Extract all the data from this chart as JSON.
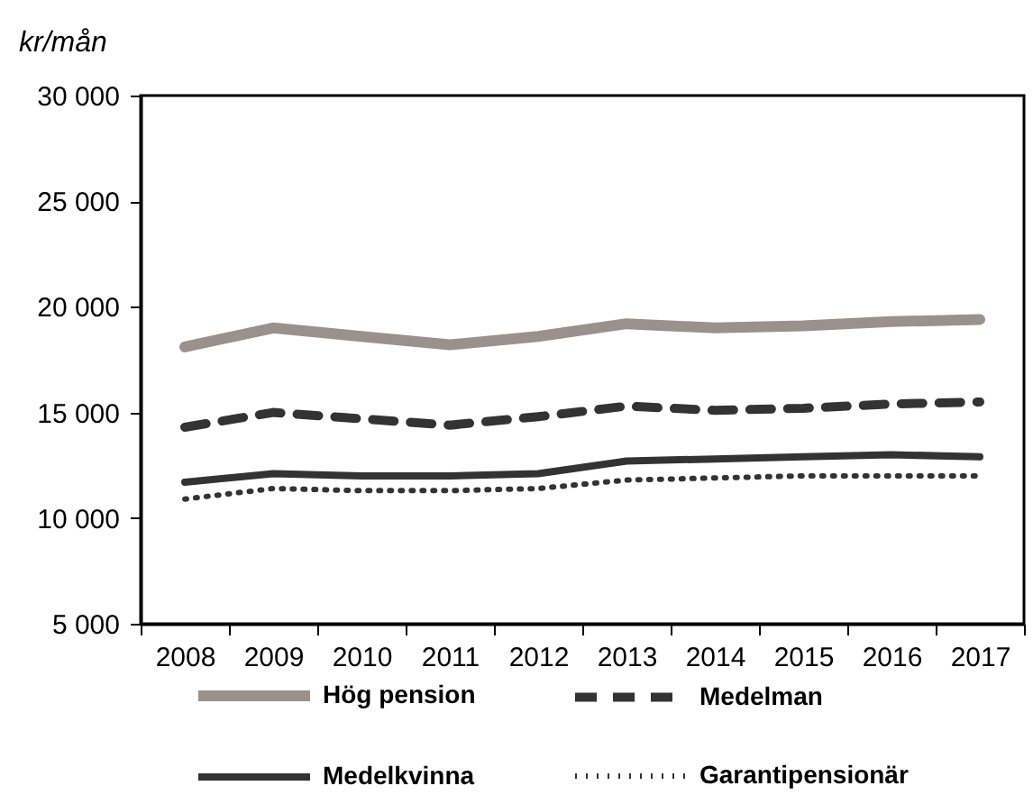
{
  "chart_data": {
    "type": "line",
    "ylabel": "kr/mån",
    "categories": [
      "2008",
      "2009",
      "2010",
      "2011",
      "2012",
      "2013",
      "2014",
      "2015",
      "2016",
      "2017"
    ],
    "series": [
      {
        "name": "Hög pension",
        "color": "#9a918d",
        "line_style": "solid",
        "values": [
          18100,
          19000,
          18600,
          18200,
          18600,
          19200,
          19000,
          19100,
          19300,
          19400
        ]
      },
      {
        "name": "Medelman",
        "color": "#333333",
        "line_style": "dashed",
        "values": [
          14300,
          15000,
          14700,
          14400,
          14800,
          15300,
          15100,
          15200,
          15400,
          15500
        ]
      },
      {
        "name": "Medelkvinna",
        "color": "#333333",
        "line_style": "solid",
        "values": [
          11700,
          12100,
          12000,
          12000,
          12100,
          12700,
          12800,
          12900,
          13000,
          12900
        ]
      },
      {
        "name": "Garantipensionär",
        "color": "#333333",
        "line_style": "dotted",
        "values": [
          10900,
          11400,
          11300,
          11300,
          11400,
          11800,
          11900,
          12000,
          12000,
          12000
        ]
      }
    ],
    "ylim": [
      5000,
      30000
    ],
    "yticks": [
      {
        "value": 5000,
        "label": "5 000"
      },
      {
        "value": 10000,
        "label": "10 000"
      },
      {
        "value": 15000,
        "label": "15 000"
      },
      {
        "value": 20000,
        "label": "20 000"
      },
      {
        "value": 25000,
        "label": "25 000"
      },
      {
        "value": 30000,
        "label": "30 000"
      }
    ],
    "legend": "bottom",
    "grid": false
  }
}
